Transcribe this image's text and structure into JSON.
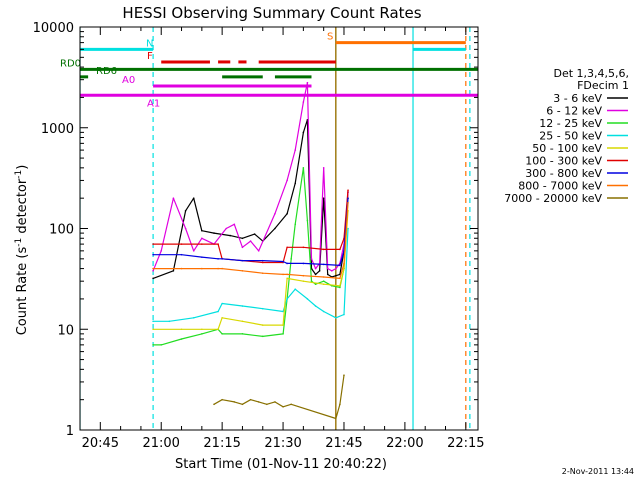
{
  "chart_data": {
    "type": "line",
    "title": "HESSI Observing Summary Count Rates",
    "xlabel": "Start Time (01-Nov-11 20:40:22)",
    "ylabel": "Count Rate (s",
    "ylabel_sup": "-1",
    "ylabel_mid": " detector",
    "ylabel_sup2": "-1",
    "ylabel_end": ")",
    "yscale": "log",
    "ylim": [
      1,
      10000
    ],
    "xlim": [
      "20:40",
      "22:18"
    ],
    "xticks": [
      "20:45",
      "21:00",
      "21:15",
      "21:30",
      "21:45",
      "22:00",
      "22:15"
    ],
    "yticks": [
      "1",
      "10",
      "100",
      "1000",
      "10000"
    ],
    "legend": {
      "placement": "right",
      "header": [
        "Det 1,3,4,5,6,",
        "FDecim 1"
      ],
      "entries": [
        {
          "label": "3 - 6 keV",
          "color": "#000000"
        },
        {
          "label": "6 - 12 keV",
          "color": "#e000e0"
        },
        {
          "label": "12 - 25 keV",
          "color": "#22dd22"
        },
        {
          "label": "25 - 50 keV",
          "color": "#00e0e0"
        },
        {
          "label": "50 - 100 keV",
          "color": "#d8d800"
        },
        {
          "label": "100 - 300 keV",
          "color": "#e00000"
        },
        {
          "label": "300 - 800 keV",
          "color": "#0000e0"
        },
        {
          "label": "800 - 7000 keV",
          "color": "#ff7000"
        },
        {
          "label": "7000 - 20000 keV",
          "color": "#887000"
        }
      ]
    },
    "series": [
      {
        "name": "3 - 6 keV",
        "color": "#000000",
        "x": [
          "20:58",
          "21:03",
          "21:06",
          "21:08",
          "21:10",
          "21:13",
          "21:17",
          "21:20",
          "21:23",
          "21:25",
          "21:28",
          "21:31",
          "21:33",
          "21:35",
          "21:36",
          "21:37",
          "21:38",
          "21:39",
          "21:40",
          "21:41",
          "21:42",
          "21:43",
          "21:44",
          "21:45",
          "21:46"
        ],
        "y": [
          32,
          38,
          150,
          200,
          95,
          90,
          85,
          80,
          88,
          75,
          100,
          140,
          280,
          900,
          1200,
          40,
          35,
          38,
          200,
          35,
          33,
          34,
          35,
          60,
          230
        ]
      },
      {
        "name": "6 - 12 keV",
        "color": "#e000e0",
        "x": [
          "20:58",
          "21:00",
          "21:03",
          "21:06",
          "21:08",
          "21:10",
          "21:13",
          "21:16",
          "21:18",
          "21:20",
          "21:22",
          "21:24",
          "21:28",
          "21:31",
          "21:33",
          "21:35",
          "21:36",
          "21:37",
          "21:38",
          "21:39",
          "21:40",
          "21:41",
          "21:42",
          "21:43",
          "21:44",
          "21:45",
          "21:46"
        ],
        "y": [
          38,
          60,
          200,
          100,
          60,
          80,
          70,
          100,
          110,
          65,
          75,
          60,
          140,
          300,
          600,
          1800,
          2800,
          50,
          40,
          45,
          400,
          40,
          38,
          40,
          45,
          70,
          230
        ]
      },
      {
        "name": "12 - 25 keV",
        "color": "#22dd22",
        "x": [
          "20:58",
          "21:00",
          "21:05",
          "21:10",
          "21:14",
          "21:15",
          "21:20",
          "21:25",
          "21:30",
          "21:31",
          "21:32",
          "21:33",
          "21:35",
          "21:36",
          "21:37",
          "21:38",
          "21:40",
          "21:42",
          "21:44",
          "21:45",
          "21:46"
        ],
        "y": [
          7,
          7,
          8,
          9,
          10,
          9,
          9,
          8.5,
          9,
          20,
          50,
          110,
          400,
          120,
          30,
          28,
          30,
          27,
          26,
          40,
          200
        ]
      },
      {
        "name": "25 - 50 keV",
        "color": "#00e0e0",
        "x": [
          "20:58",
          "21:02",
          "21:08",
          "21:14",
          "21:15",
          "21:20",
          "21:25",
          "21:30",
          "21:31",
          "21:33",
          "21:36",
          "21:38",
          "21:40",
          "21:43",
          "21:45",
          "21:46"
        ],
        "y": [
          12,
          12,
          13,
          15,
          18,
          17,
          16,
          15,
          20,
          25,
          20,
          17,
          15,
          13,
          14,
          100
        ]
      },
      {
        "name": "50 - 100 keV",
        "color": "#d8d800",
        "x": [
          "20:58",
          "21:05",
          "21:10",
          "21:14",
          "21:15",
          "21:20",
          "21:25",
          "21:30",
          "21:31",
          "21:35",
          "21:40",
          "21:44",
          "21:45",
          "21:46"
        ],
        "y": [
          10,
          10,
          10,
          10,
          13,
          12,
          11,
          11,
          32,
          30,
          28,
          27,
          40,
          150
        ]
      },
      {
        "name": "100 - 300 keV",
        "color": "#e00000",
        "x": [
          "20:58",
          "21:05",
          "21:10",
          "21:14",
          "21:15",
          "21:20",
          "21:25",
          "21:30",
          "21:31",
          "21:35",
          "21:40",
          "21:44",
          "21:45",
          "21:46"
        ],
        "y": [
          70,
          70,
          70,
          70,
          50,
          48,
          46,
          46,
          65,
          65,
          62,
          62,
          80,
          240
        ]
      },
      {
        "name": "300 - 800 keV",
        "color": "#0000e0",
        "x": [
          "20:58",
          "21:05",
          "21:10",
          "21:14",
          "21:15",
          "21:20",
          "21:25",
          "21:30",
          "21:31",
          "21:35",
          "21:40",
          "21:44",
          "21:45",
          "21:46"
        ],
        "y": [
          55,
          55,
          52,
          50,
          50,
          48,
          48,
          47,
          45,
          45,
          44,
          43,
          60,
          200
        ]
      },
      {
        "name": "800 - 7000 keV",
        "color": "#ff7000",
        "x": [
          "20:58",
          "21:05",
          "21:10",
          "21:14",
          "21:15",
          "21:20",
          "21:25",
          "21:30",
          "21:31",
          "21:35",
          "21:40",
          "21:44",
          "21:45",
          "21:46"
        ],
        "y": [
          40,
          40,
          40,
          40,
          40,
          38,
          36,
          35,
          35,
          34,
          33,
          32,
          45,
          180
        ]
      },
      {
        "name": "7000 - 20000 keV",
        "color": "#887000",
        "x": [
          "21:13",
          "21:15",
          "21:18",
          "21:20",
          "21:22",
          "21:24",
          "21:26",
          "21:28",
          "21:30",
          "21:32",
          "21:43",
          "21:44",
          "21:45"
        ],
        "y": [
          1.8,
          2.0,
          1.9,
          1.8,
          2.0,
          1.9,
          1.8,
          1.9,
          1.7,
          1.8,
          1.3,
          1.8,
          3.5
        ]
      }
    ],
    "flags": [
      {
        "label": "N",
        "color": "#00e0e0",
        "y": 6000,
        "show_label": true,
        "segments": [
          [
            "20:40",
            "20:58"
          ],
          [
            "22:02",
            "22:15"
          ]
        ]
      },
      {
        "label": "F",
        "color": "#e00000",
        "y": 4500,
        "show_label": true,
        "segments": [
          [
            "21:00",
            "21:12"
          ],
          [
            "21:14",
            "21:17"
          ],
          [
            "21:19",
            "21:21"
          ],
          [
            "21:24",
            "21:43"
          ]
        ]
      },
      {
        "label": "S",
        "color": "#ff7000",
        "y": 7000,
        "show_label": true,
        "segments": [
          [
            "21:43",
            "22:15"
          ]
        ]
      },
      {
        "label": "RD0",
        "color": "#007000",
        "y": 3800,
        "show_label": true,
        "segments": [
          [
            "20:40",
            "22:18"
          ]
        ]
      },
      {
        "label": "RD6",
        "color": "#007000",
        "y": 3200,
        "show_label": true,
        "segments": [
          [
            "20:40",
            "20:42"
          ],
          [
            "21:15",
            "21:25"
          ],
          [
            "21:28",
            "21:37"
          ]
        ]
      },
      {
        "label": "A0",
        "color": "#e000e0",
        "y": 2600,
        "show_label": true,
        "segments": [
          [
            "20:58",
            "21:37"
          ]
        ]
      },
      {
        "label": "A1",
        "color": "#e000e0",
        "y": 2100,
        "show_label": true,
        "segments": [
          [
            "20:40",
            "22:18"
          ]
        ]
      }
    ],
    "vlines": [
      {
        "x": "20:40",
        "color": "#00e0e0",
        "style": "solid"
      },
      {
        "x": "20:58",
        "color": "#00e0e0",
        "style": "dashed"
      },
      {
        "x": "21:43",
        "color": "#ff7000",
        "style": "solid"
      },
      {
        "x": "21:43",
        "color": "#887000",
        "style": "solid"
      },
      {
        "x": "22:02",
        "color": "#00e0e0",
        "style": "solid"
      },
      {
        "x": "22:15",
        "color": "#ff7000",
        "style": "dashed"
      },
      {
        "x": "22:16",
        "color": "#00e0e0",
        "style": "dashed"
      }
    ],
    "footer": "2-Nov-2011 13:44"
  }
}
